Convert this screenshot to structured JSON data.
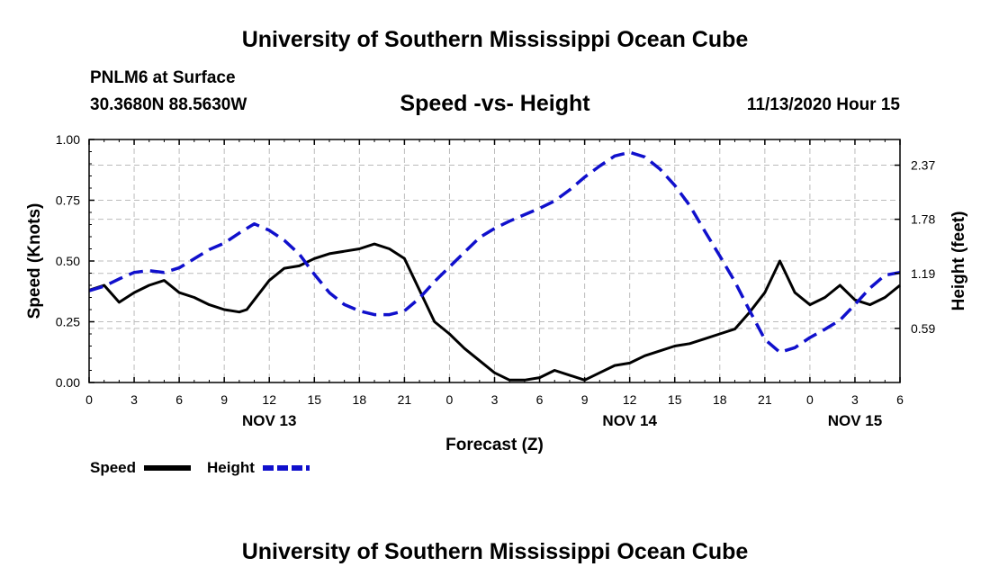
{
  "header": {
    "site_title": "University of Southern Mississippi Ocean Cube",
    "station": "PNLM6 at Surface",
    "coordinates": "30.3680N 88.5630W",
    "chart_title": "Speed -vs- Height",
    "datetime": "11/13/2020 Hour 15"
  },
  "footer": {
    "site_title": "University of Southern Mississippi Ocean Cube"
  },
  "colors": {
    "speed": "#000000",
    "height": "#1010cc",
    "grid": "#bbbbbb"
  },
  "chart_data": {
    "type": "line",
    "title": "Speed -vs- Height",
    "xlabel": "Forecast (Z)",
    "ylabel": "Speed (Knots)",
    "y2label": "Height (feet)",
    "xlim": [
      0,
      54
    ],
    "ylim": [
      0,
      1.0
    ],
    "y2lim": [
      0.0,
      2.65
    ],
    "x_ticks": [
      0,
      3,
      6,
      9,
      12,
      15,
      18,
      21,
      24,
      27,
      30,
      33,
      36,
      39,
      42,
      45,
      48,
      51,
      54
    ],
    "x_tick_labels": [
      "0",
      "3",
      "6",
      "9",
      "12",
      "15",
      "18",
      "21",
      "0",
      "3",
      "6",
      "9",
      "12",
      "15",
      "18",
      "21",
      "0",
      "3",
      "6"
    ],
    "y_ticks": [
      0.0,
      0.25,
      0.5,
      0.75,
      1.0
    ],
    "y_tick_labels": [
      "0.00",
      "0.25",
      "0.50",
      "0.75",
      "1.00"
    ],
    "y2_ticks": [
      0.59,
      1.19,
      1.78,
      2.37
    ],
    "y2_tick_labels": [
      "0.59",
      "1.19",
      "1.78",
      "2.37"
    ],
    "day_labels": [
      {
        "x": 12,
        "label": "NOV 13"
      },
      {
        "x": 36,
        "label": "NOV 14"
      },
      {
        "x": 51,
        "label": "NOV 15"
      }
    ],
    "grid": true,
    "legend_position": "bottom-left",
    "series": [
      {
        "name": "Speed",
        "axis": "left",
        "style": "solid",
        "x": [
          0,
          1,
          2,
          3,
          4,
          5,
          6,
          7,
          8,
          9,
          10,
          10.5,
          11,
          12,
          13,
          14,
          15,
          16,
          17,
          18,
          19,
          20,
          21,
          22,
          23,
          24,
          25,
          26,
          27,
          28,
          29,
          30,
          31,
          32,
          33,
          34,
          35,
          36,
          37,
          38,
          39,
          40,
          41,
          42,
          43,
          44,
          45,
          46,
          47,
          48,
          49,
          50,
          51,
          52,
          53,
          54
        ],
        "values": [
          0.38,
          0.4,
          0.33,
          0.37,
          0.4,
          0.42,
          0.37,
          0.35,
          0.32,
          0.3,
          0.29,
          0.3,
          0.34,
          0.42,
          0.47,
          0.48,
          0.51,
          0.53,
          0.54,
          0.55,
          0.57,
          0.55,
          0.51,
          0.38,
          0.25,
          0.2,
          0.14,
          0.09,
          0.04,
          0.01,
          0.01,
          0.02,
          0.05,
          0.03,
          0.01,
          0.04,
          0.07,
          0.08,
          0.11,
          0.13,
          0.15,
          0.16,
          0.18,
          0.2,
          0.22,
          0.29,
          0.37,
          0.5,
          0.37,
          0.32,
          0.35,
          0.4,
          0.34,
          0.32,
          0.35,
          0.4
        ]
      },
      {
        "name": "Height",
        "axis": "right",
        "style": "dashed",
        "x": [
          0,
          1,
          2,
          3,
          4,
          5,
          6,
          7,
          8,
          9,
          10,
          11,
          12,
          13,
          14,
          15,
          16,
          17,
          18,
          19,
          20,
          21,
          22,
          23,
          24,
          25,
          26,
          27,
          28,
          29,
          30,
          31,
          32,
          33,
          34,
          35,
          36,
          37,
          38,
          39,
          40,
          41,
          42,
          43,
          44,
          45,
          46,
          47,
          48,
          49,
          50,
          51,
          52,
          53,
          54
        ],
        "values": [
          1.0,
          1.05,
          1.13,
          1.2,
          1.22,
          1.2,
          1.25,
          1.35,
          1.45,
          1.52,
          1.63,
          1.73,
          1.66,
          1.55,
          1.4,
          1.18,
          0.98,
          0.85,
          0.78,
          0.74,
          0.74,
          0.78,
          0.92,
          1.1,
          1.26,
          1.42,
          1.58,
          1.68,
          1.76,
          1.83,
          1.9,
          1.98,
          2.1,
          2.24,
          2.36,
          2.47,
          2.51,
          2.46,
          2.33,
          2.15,
          1.93,
          1.65,
          1.38,
          1.1,
          0.78,
          0.47,
          0.33,
          0.38,
          0.49,
          0.58,
          0.68,
          0.85,
          1.03,
          1.17,
          1.2
        ]
      }
    ]
  },
  "legend": {
    "speed_label": "Speed",
    "height_label": "Height"
  }
}
